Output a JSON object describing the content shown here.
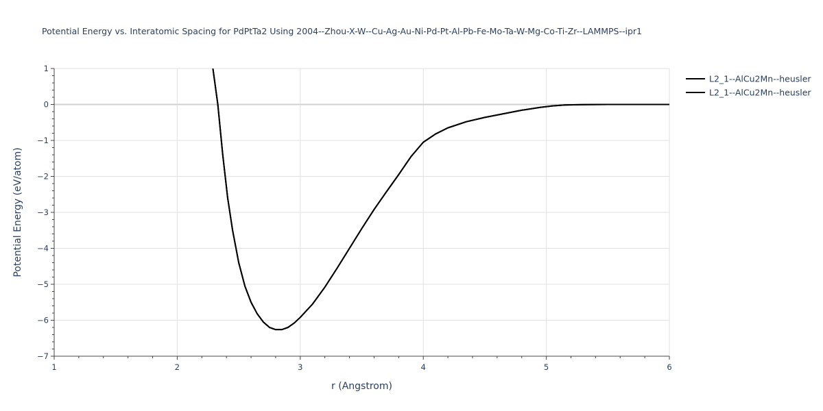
{
  "chart_data": {
    "type": "line",
    "title": "Potential Energy vs. Interatomic Spacing for PdPtTa2 Using 2004--Zhou-X-W--Cu-Ag-Au-Ni-Pd-Pt-Al-Pb-Fe-Mo-Ta-W-Mg-Co-Ti-Zr--LAMMPS--ipr1",
    "xlabel": "r (Angstrom)",
    "ylabel": "Potential Energy (eV/atom)",
    "xlim": [
      1,
      6
    ],
    "ylim": [
      -7,
      1
    ],
    "x_ticks": [
      1,
      2,
      3,
      4,
      5,
      6
    ],
    "x_tick_labels": [
      "1",
      "2",
      "3",
      "4",
      "5",
      "6"
    ],
    "y_ticks": [
      1,
      0,
      -1,
      -2,
      -3,
      -4,
      -5,
      -6,
      -7
    ],
    "y_tick_labels": [
      "1",
      "0",
      "−1",
      "−2",
      "−3",
      "−4",
      "−5",
      "−6",
      "−7"
    ],
    "grid": true,
    "legend_position": "top-right",
    "series": [
      {
        "name": "L2_1--AlCu2Mn--heusler",
        "color": "#000000",
        "x": [
          2.29,
          2.33,
          2.37,
          2.41,
          2.45,
          2.5,
          2.55,
          2.6,
          2.65,
          2.7,
          2.75,
          2.8,
          2.85,
          2.9,
          2.95,
          3.0,
          3.1,
          3.2,
          3.3,
          3.4,
          3.5,
          3.6,
          3.7,
          3.8,
          3.9,
          4.0,
          4.1,
          4.2,
          4.35,
          4.5,
          4.65,
          4.8,
          4.95,
          5.05,
          5.15,
          5.3,
          5.5,
          5.8,
          6.0
        ],
        "y": [
          1.0,
          0.0,
          -1.4,
          -2.6,
          -3.5,
          -4.4,
          -5.05,
          -5.5,
          -5.82,
          -6.05,
          -6.2,
          -6.26,
          -6.26,
          -6.2,
          -6.08,
          -5.92,
          -5.55,
          -5.08,
          -4.55,
          -4.0,
          -3.45,
          -2.92,
          -2.43,
          -1.95,
          -1.45,
          -1.05,
          -0.82,
          -0.65,
          -0.48,
          -0.36,
          -0.26,
          -0.16,
          -0.08,
          -0.04,
          -0.015,
          -0.005,
          0.0,
          0.0,
          0.0
        ]
      },
      {
        "name": "L2_1--AlCu2Mn--heusler",
        "color": "#000000",
        "x": [
          2.29,
          2.33,
          2.37,
          2.41,
          2.45,
          2.5,
          2.55,
          2.6,
          2.65,
          2.7,
          2.75,
          2.8,
          2.85,
          2.9,
          2.95,
          3.0,
          3.1,
          3.2,
          3.3,
          3.4,
          3.5,
          3.6,
          3.7,
          3.8,
          3.9,
          4.0,
          4.1,
          4.2,
          4.35,
          4.5,
          4.65,
          4.8,
          4.95,
          5.05,
          5.15,
          5.3,
          5.5,
          5.8,
          6.0
        ],
        "y": [
          1.0,
          0.0,
          -1.4,
          -2.6,
          -3.5,
          -4.4,
          -5.05,
          -5.5,
          -5.82,
          -6.05,
          -6.2,
          -6.26,
          -6.26,
          -6.2,
          -6.08,
          -5.92,
          -5.55,
          -5.08,
          -4.55,
          -4.0,
          -3.45,
          -2.92,
          -2.43,
          -1.95,
          -1.45,
          -1.05,
          -0.82,
          -0.65,
          -0.48,
          -0.36,
          -0.26,
          -0.16,
          -0.08,
          -0.04,
          -0.015,
          -0.005,
          0.0,
          0.0,
          0.0
        ]
      }
    ]
  }
}
